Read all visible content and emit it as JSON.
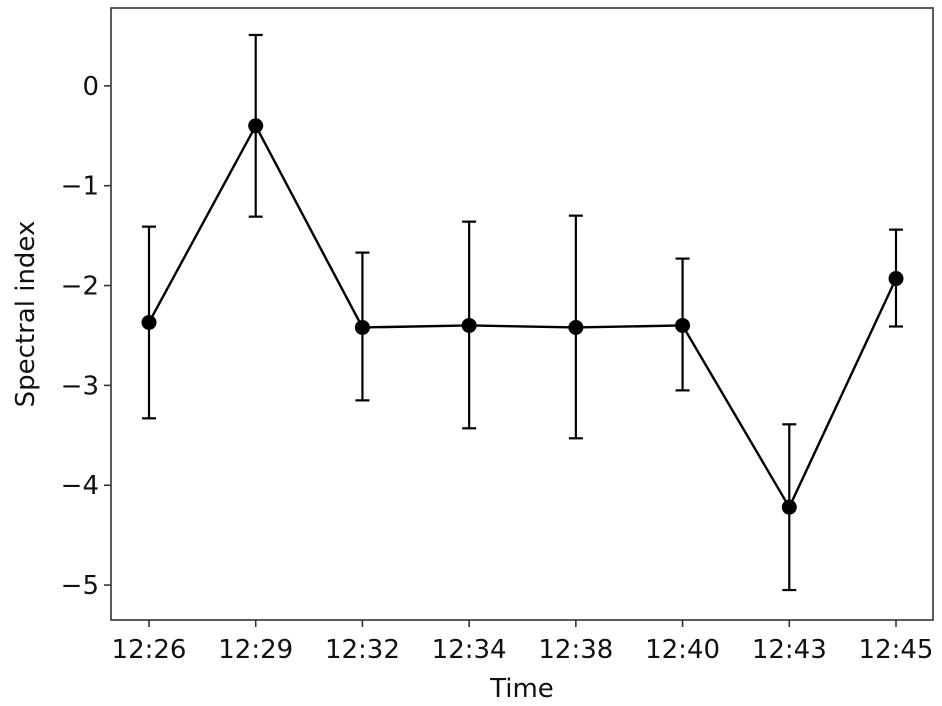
{
  "chart_data": {
    "type": "line",
    "title": "",
    "xlabel": "Time",
    "ylabel": "Spectral index",
    "categories": [
      "12:26",
      "12:29",
      "12:32",
      "12:34",
      "12:38",
      "12:40",
      "12:43",
      "12:45"
    ],
    "series": [
      {
        "values": [
          -2.37,
          -0.4,
          -2.42,
          -2.4,
          -2.42,
          -2.4,
          -4.22,
          -1.93
        ],
        "err_lower": [
          -3.33,
          -1.31,
          -3.15,
          -3.43,
          -3.53,
          -3.05,
          -5.05,
          -2.41
        ],
        "err_upper": [
          -1.41,
          0.51,
          -1.67,
          -1.36,
          -1.3,
          -1.73,
          -3.39,
          -1.44
        ]
      }
    ],
    "ylim": [
      -5.35,
      0.78
    ],
    "yticks": [
      0,
      -1,
      -2,
      -3,
      -4,
      -5
    ],
    "ytick_labels": [
      "0",
      "−1",
      "−2",
      "−3",
      "−4",
      "−5"
    ],
    "grid": false,
    "legend": "none",
    "colors": {
      "line": "#000000",
      "axes": "#333333",
      "background": "#ffffff"
    }
  }
}
